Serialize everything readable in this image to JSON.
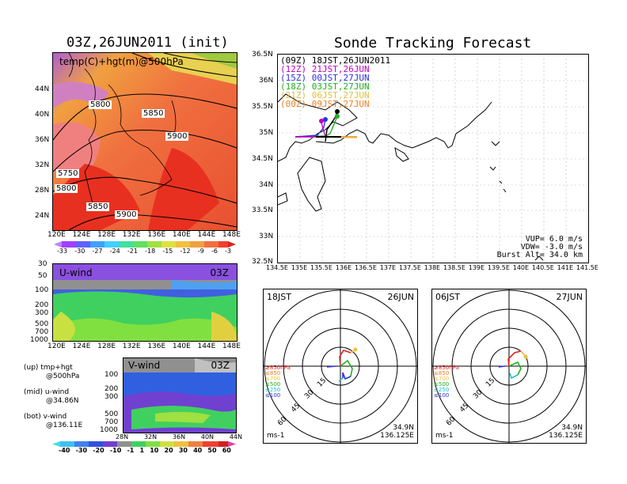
{
  "left_title": "03Z,26JUN2011 (init)",
  "right_title": "Sonde Tracking Forecast",
  "temp_panel": {
    "label": "temp(C)+hgt(m)@500hPa",
    "lat_ticks": [
      "44N",
      "40N",
      "36N",
      "32N",
      "28N",
      "24N"
    ],
    "lon_ticks": [
      "120E",
      "124E",
      "128E",
      "132E",
      "136E",
      "140E",
      "144E",
      "148E"
    ],
    "contour_labels": [
      "5800",
      "5850",
      "5900",
      "5750",
      "5800",
      "5850",
      "5900"
    ]
  },
  "temp_colorbar": {
    "ticks": [
      "-33",
      "-30",
      "-27",
      "-24",
      "-21",
      "-18",
      "-15",
      "-12",
      "-9",
      "-6",
      "-3"
    ]
  },
  "u_panel": {
    "label": "U-wind",
    "time": "03Z",
    "p_ticks": [
      "30",
      "50",
      "100",
      "200",
      "300",
      "500",
      "700",
      "1000"
    ],
    "lon_ticks": [
      "120E",
      "124E",
      "128E",
      "132E",
      "136E",
      "140E",
      "144E",
      "148E"
    ]
  },
  "v_panel": {
    "label": "V-wind",
    "time": "03Z",
    "p_ticks": [
      "100",
      "200",
      "300",
      "500",
      "700",
      "1000"
    ],
    "lat_ticks": [
      "28N",
      "32N",
      "36N",
      "40N",
      "44N"
    ]
  },
  "legend_notes": [
    {
      "a": "(up) tmp+hgt",
      "b": "@500hPa"
    },
    {
      "a": "(mid) u-wind",
      "b": "@34.86N"
    },
    {
      "a": "(bot) v-wind",
      "b": "@136.11E"
    }
  ],
  "wind_colorbar": {
    "ticks": [
      "-40",
      "-30",
      "-20",
      "-10",
      "-1",
      "1",
      "10",
      "20",
      "30",
      "40",
      "50",
      "60"
    ]
  },
  "track_map": {
    "lat_ticks": [
      "36.5N",
      "36N",
      "35.5N",
      "35N",
      "34.5N",
      "34N",
      "33.5N",
      "33N",
      "32.5N"
    ],
    "lon_ticks": [
      "134.5E",
      "135E",
      "135.5E",
      "136E",
      "136.5E",
      "137E",
      "137.5E",
      "138E",
      "138.5E",
      "139E",
      "139.5E",
      "140E",
      "140.5E",
      "141E",
      "141.5E"
    ],
    "runs": [
      {
        "code": "(09Z)",
        "time": "18JST,26JUN2011",
        "color": "#000000"
      },
      {
        "code": "(12Z)",
        "time": "21JST,26JUN",
        "color": "#c000c0"
      },
      {
        "code": "(15Z)",
        "time": "00JST,27JUN",
        "color": "#3030e0"
      },
      {
        "code": "(18Z)",
        "time": "03JST,27JUN",
        "color": "#20b020"
      },
      {
        "code": "(21Z)",
        "time": "06JST,27JUN",
        "color": "#e0c040"
      },
      {
        "code": "(00Z)",
        "time": "09JST,27JUN",
        "color": "#f08020"
      }
    ],
    "params": [
      {
        "k": "VUP=",
        "v": "6.0 m/s"
      },
      {
        "k": "VDW=",
        "v": "-3.0 m/s"
      },
      {
        "k": "Burst Alt=",
        "v": "34.0 km"
      }
    ]
  },
  "hodo_left": {
    "time": "18JST",
    "date": "26JUN",
    "ring_labels": [
      "15",
      "30",
      "45",
      "60"
    ],
    "levels": [
      "≥850hPa",
      "≤850",
      "≤700",
      "≤500",
      "≤250",
      "≤100"
    ],
    "unit": "ms-1",
    "lat": "34.9N",
    "lon": "136.125E"
  },
  "hodo_right": {
    "time": "06JST",
    "date": "27JUN",
    "ring_labels": [
      "15",
      "30",
      "45",
      "60"
    ],
    "levels": [
      "≥850hPa",
      "≤850",
      "≤700",
      "≤500",
      "≤250",
      "≤100"
    ],
    "unit": "ms-1",
    "lat": "34.9N",
    "lon": "136.125E"
  },
  "chart_data": [
    {
      "type": "heatmap",
      "title": "temp(C)+hgt(m)@500hPa",
      "xlim": [
        120,
        150
      ],
      "ylim": [
        22,
        48
      ],
      "colorbar_ticks": [
        -33,
        -30,
        -27,
        -24,
        -21,
        -18,
        -15,
        -12,
        -9,
        -6,
        -3
      ],
      "contours": [
        5750,
        5800,
        5850,
        5900
      ]
    },
    {
      "type": "line",
      "title": "Sonde Tracking Forecast",
      "xlim": [
        134.5,
        141.5
      ],
      "ylim": [
        32.5,
        36.5
      ],
      "series": [
        {
          "name": "(09Z)",
          "x": [
            136.1,
            136.12,
            136.15
          ],
          "y": [
            34.9,
            35.1,
            35.3
          ]
        },
        {
          "name": "(12Z)",
          "x": [
            135.25,
            135.6,
            136.0
          ],
          "y": [
            34.93,
            34.93,
            34.93
          ]
        },
        {
          "name": "(15Z)",
          "x": [
            135.3,
            135.55,
            135.75
          ],
          "y": [
            34.93,
            35.05,
            35.25
          ]
        },
        {
          "name": "(18Z)",
          "x": [
            135.25,
            135.7,
            135.95
          ],
          "y": [
            34.93,
            34.98,
            35.28
          ]
        },
        {
          "name": "(21Z)",
          "x": [
            135.25,
            135.8,
            136.3
          ],
          "y": [
            34.93,
            34.95,
            34.95
          ]
        },
        {
          "name": "(00Z)",
          "x": [
            135.25,
            135.85,
            136.3
          ],
          "y": [
            34.93,
            34.95,
            34.95
          ]
        }
      ]
    }
  ]
}
